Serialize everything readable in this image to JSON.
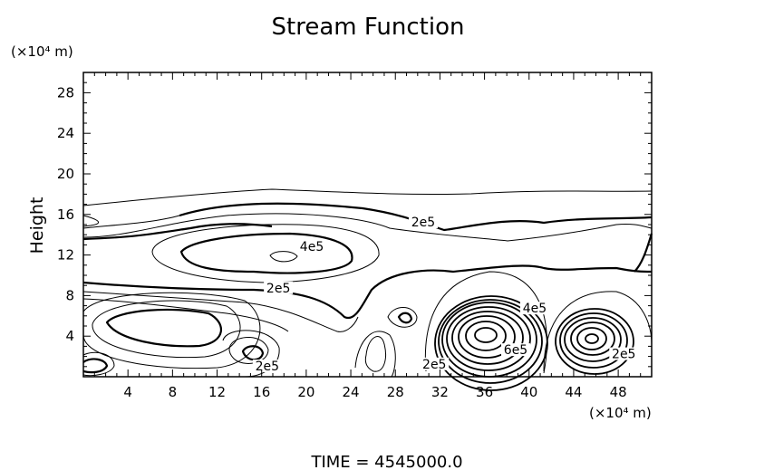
{
  "chart_data": {
    "type": "contour",
    "title": "Stream Function",
    "ylabel": "Height",
    "x_unit_label": "(×10⁴ m)",
    "y_unit_label": "(×10⁴ m)",
    "footer": "TIME  =  4545000.0",
    "xlim": [
      0,
      51
    ],
    "ylim": [
      0,
      30
    ],
    "x_ticks": [
      4,
      8,
      12,
      16,
      20,
      24,
      28,
      32,
      36,
      40,
      44,
      48
    ],
    "y_ticks": [
      4,
      8,
      12,
      16,
      20,
      24,
      28
    ],
    "contour_labels": [
      {
        "text": "2e5",
        "x": 30.5,
        "y": 15.0
      },
      {
        "text": "4e5",
        "x": 20.5,
        "y": 12.6
      },
      {
        "text": "2e5",
        "x": 17.5,
        "y": 8.5
      },
      {
        "text": "4e5",
        "x": 40.5,
        "y": 6.5
      },
      {
        "text": "6e5",
        "x": 38.8,
        "y": 2.4
      },
      {
        "text": "2e5",
        "x": 31.5,
        "y": 1.0
      },
      {
        "text": "2e5",
        "x": 16.5,
        "y": 0.8
      },
      {
        "text": "2e5",
        "x": 48.5,
        "y": 2.0
      }
    ]
  }
}
